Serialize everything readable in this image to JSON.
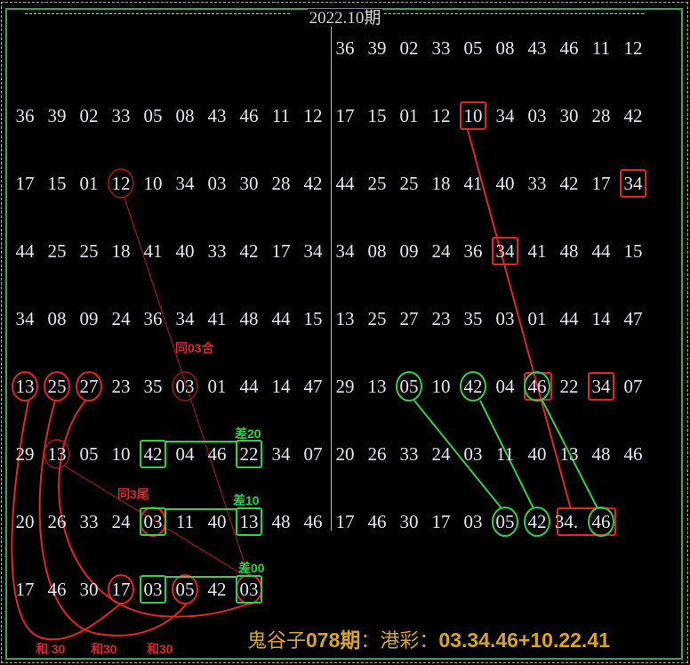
{
  "chart_data": {
    "type": "table",
    "title": "2022.10期",
    "left_block": [
      [
        "36",
        "39",
        "02",
        "33",
        "05",
        "08",
        "43",
        "46",
        "11",
        "12"
      ],
      [
        "17",
        "15",
        "01",
        "12",
        "10",
        "34",
        "03",
        "30",
        "28",
        "42"
      ],
      [
        "44",
        "25",
        "25",
        "18",
        "41",
        "40",
        "33",
        "42",
        "17",
        "34"
      ],
      [
        "34",
        "08",
        "09",
        "24",
        "36",
        "34",
        "41",
        "48",
        "44",
        "15"
      ],
      [
        "13",
        "25",
        "27",
        "23",
        "35",
        "03",
        "01",
        "44",
        "14",
        "47"
      ],
      [
        "29",
        "13",
        "05",
        "10",
        "42",
        "04",
        "46",
        "22",
        "34",
        "07"
      ],
      [
        "20",
        "26",
        "33",
        "24",
        "03",
        "11",
        "40",
        "13",
        "48",
        "46"
      ],
      [
        "17",
        "46",
        "30",
        "17",
        "03",
        "05",
        "42",
        "03"
      ]
    ],
    "right_block": [
      [
        "36",
        "39",
        "02",
        "33",
        "05",
        "08",
        "43",
        "46",
        "11",
        "12"
      ],
      [
        "17",
        "15",
        "01",
        "12",
        "10",
        "34",
        "03",
        "30",
        "28",
        "42"
      ],
      [
        "44",
        "25",
        "25",
        "18",
        "41",
        "40",
        "33",
        "42",
        "17",
        "34"
      ],
      [
        "34",
        "08",
        "09",
        "24",
        "36",
        "34",
        "41",
        "48",
        "44",
        "15"
      ],
      [
        "13",
        "25",
        "27",
        "23",
        "35",
        "03",
        "01",
        "44",
        "14",
        "47"
      ],
      [
        "29",
        "13",
        "05",
        "10",
        "42",
        "04",
        "46",
        "22",
        "34",
        "07"
      ],
      [
        "20",
        "26",
        "33",
        "24",
        "03",
        "11",
        "40",
        "13",
        "48",
        "46"
      ],
      [
        "17",
        "46",
        "30",
        "17",
        "03",
        "05",
        "42",
        "34.",
        "46"
      ]
    ],
    "annotations": {
      "same_03_he": "同03合",
      "diff_20": "差20",
      "same_3_tail": "同3尾",
      "diff_10": "差10",
      "diff_00": "差00",
      "sum_labels": [
        "和 30",
        "和30",
        "和30"
      ]
    },
    "colors": {
      "red": "#e0262a",
      "green": "#2fd04a",
      "gold": "#d9a520",
      "number": "#e4e4f2"
    }
  },
  "footer": {
    "prefix": "鬼谷子",
    "issue": "078期",
    "middle": "：港彩：",
    "prediction": "03.34.46+10.22.41"
  }
}
